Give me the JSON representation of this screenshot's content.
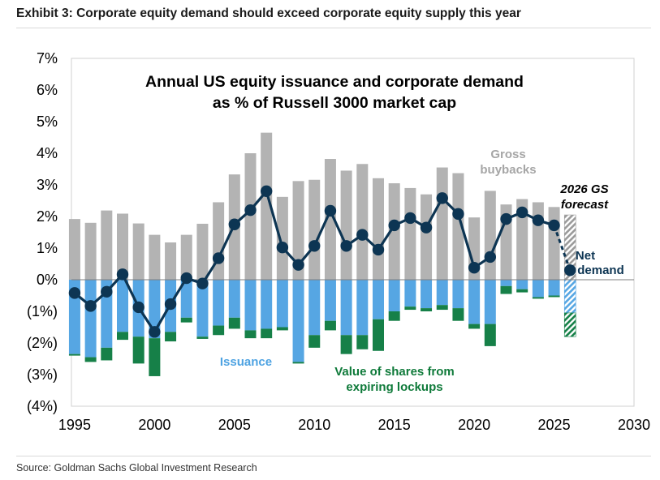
{
  "exhibit_title": "Exhibit 3: Corporate equity demand should exceed corporate equity supply this year",
  "source": "Source: Goldman Sachs Global Investment Research",
  "colors": {
    "buybacks": "#b3b3b3",
    "issuance": "#56a6e3",
    "lockups": "#168048",
    "net_demand": "#0d3553",
    "issuance_label": "#4ea3e2",
    "lockups_label": "#0f7a3a",
    "buybacks_label": "#a6a6a6"
  },
  "chart_data": {
    "type": "bar",
    "title_lines": [
      "Annual US equity issuance and corporate demand",
      "as % of Russell 3000 market cap"
    ],
    "x": [
      1995,
      1996,
      1997,
      1998,
      1999,
      2000,
      2001,
      2002,
      2003,
      2004,
      2005,
      2006,
      2007,
      2008,
      2009,
      2010,
      2011,
      2012,
      2013,
      2014,
      2015,
      2016,
      2017,
      2018,
      2019,
      2020,
      2021,
      2022,
      2023,
      2024,
      2025,
      2026
    ],
    "x_ticks": [
      1995,
      2000,
      2005,
      2010,
      2015,
      2020,
      2025,
      2030
    ],
    "x_range": [
      1994.8,
      2030
    ],
    "y_ticks": [
      {
        "v": 7,
        "label": "7%"
      },
      {
        "v": 6,
        "label": "6%"
      },
      {
        "v": 5,
        "label": "5%"
      },
      {
        "v": 4,
        "label": "4%"
      },
      {
        "v": 3,
        "label": "3%"
      },
      {
        "v": 2,
        "label": "2%"
      },
      {
        "v": 1,
        "label": "1%"
      },
      {
        "v": 0,
        "label": "0%"
      },
      {
        "v": -1,
        "label": "(1%)"
      },
      {
        "v": -2,
        "label": "(2%)"
      },
      {
        "v": -3,
        "label": "(3%)"
      },
      {
        "v": -4,
        "label": "(4%)"
      }
    ],
    "ylim": [
      -4,
      7
    ],
    "forecast_year": 2026,
    "series": [
      {
        "name": "Gross buybacks",
        "type": "bar",
        "values": [
          1.92,
          1.8,
          2.19,
          2.09,
          1.78,
          1.42,
          1.18,
          1.42,
          1.77,
          2.45,
          3.33,
          4.0,
          4.65,
          2.62,
          3.12,
          3.16,
          3.82,
          3.45,
          3.66,
          3.21,
          3.05,
          2.9,
          2.7,
          3.55,
          3.37,
          1.97,
          2.81,
          2.38,
          2.55,
          2.45,
          2.3,
          2.05
        ]
      },
      {
        "name": "Issuance",
        "type": "bar",
        "values": [
          -2.35,
          -2.45,
          -2.15,
          -1.65,
          -1.8,
          -1.85,
          -1.65,
          -1.2,
          -1.8,
          -1.45,
          -1.2,
          -1.6,
          -1.55,
          -1.5,
          -2.6,
          -1.75,
          -1.3,
          -1.75,
          -1.75,
          -1.25,
          -1.0,
          -0.85,
          -0.9,
          -0.8,
          -0.9,
          -1.4,
          -1.4,
          -0.2,
          -0.3,
          -0.55,
          -0.5,
          -1.05
        ]
      },
      {
        "name": "Value of shares from expiring lockups",
        "type": "bar",
        "values": [
          -0.05,
          -0.15,
          -0.4,
          -0.25,
          -0.85,
          -1.2,
          -0.3,
          -0.15,
          -0.07,
          -0.3,
          -0.35,
          -0.25,
          -0.3,
          -0.1,
          -0.05,
          -0.4,
          -0.3,
          -0.6,
          -0.45,
          -1.0,
          -0.3,
          -0.1,
          -0.1,
          -0.15,
          -0.4,
          -0.15,
          -0.7,
          -0.25,
          -0.1,
          -0.05,
          -0.05,
          -0.75
        ]
      },
      {
        "name": "Net demand",
        "type": "line",
        "values": [
          -0.42,
          -0.83,
          -0.38,
          0.17,
          -0.87,
          -1.65,
          -0.77,
          0.05,
          -0.12,
          0.68,
          1.75,
          2.2,
          2.8,
          1.02,
          0.47,
          1.07,
          2.18,
          1.07,
          1.42,
          0.95,
          1.72,
          1.95,
          1.65,
          2.58,
          2.08,
          0.38,
          0.72,
          1.92,
          2.13,
          1.88,
          1.72,
          0.3
        ]
      }
    ]
  },
  "annotations": {
    "buybacks": [
      "Gross",
      "buybacks"
    ],
    "forecast": [
      "2026 GS",
      "forecast"
    ],
    "net": [
      "Net",
      "demand"
    ],
    "issuance": "Issuance",
    "lockups": [
      "Value of shares from",
      "expiring lockups"
    ]
  }
}
